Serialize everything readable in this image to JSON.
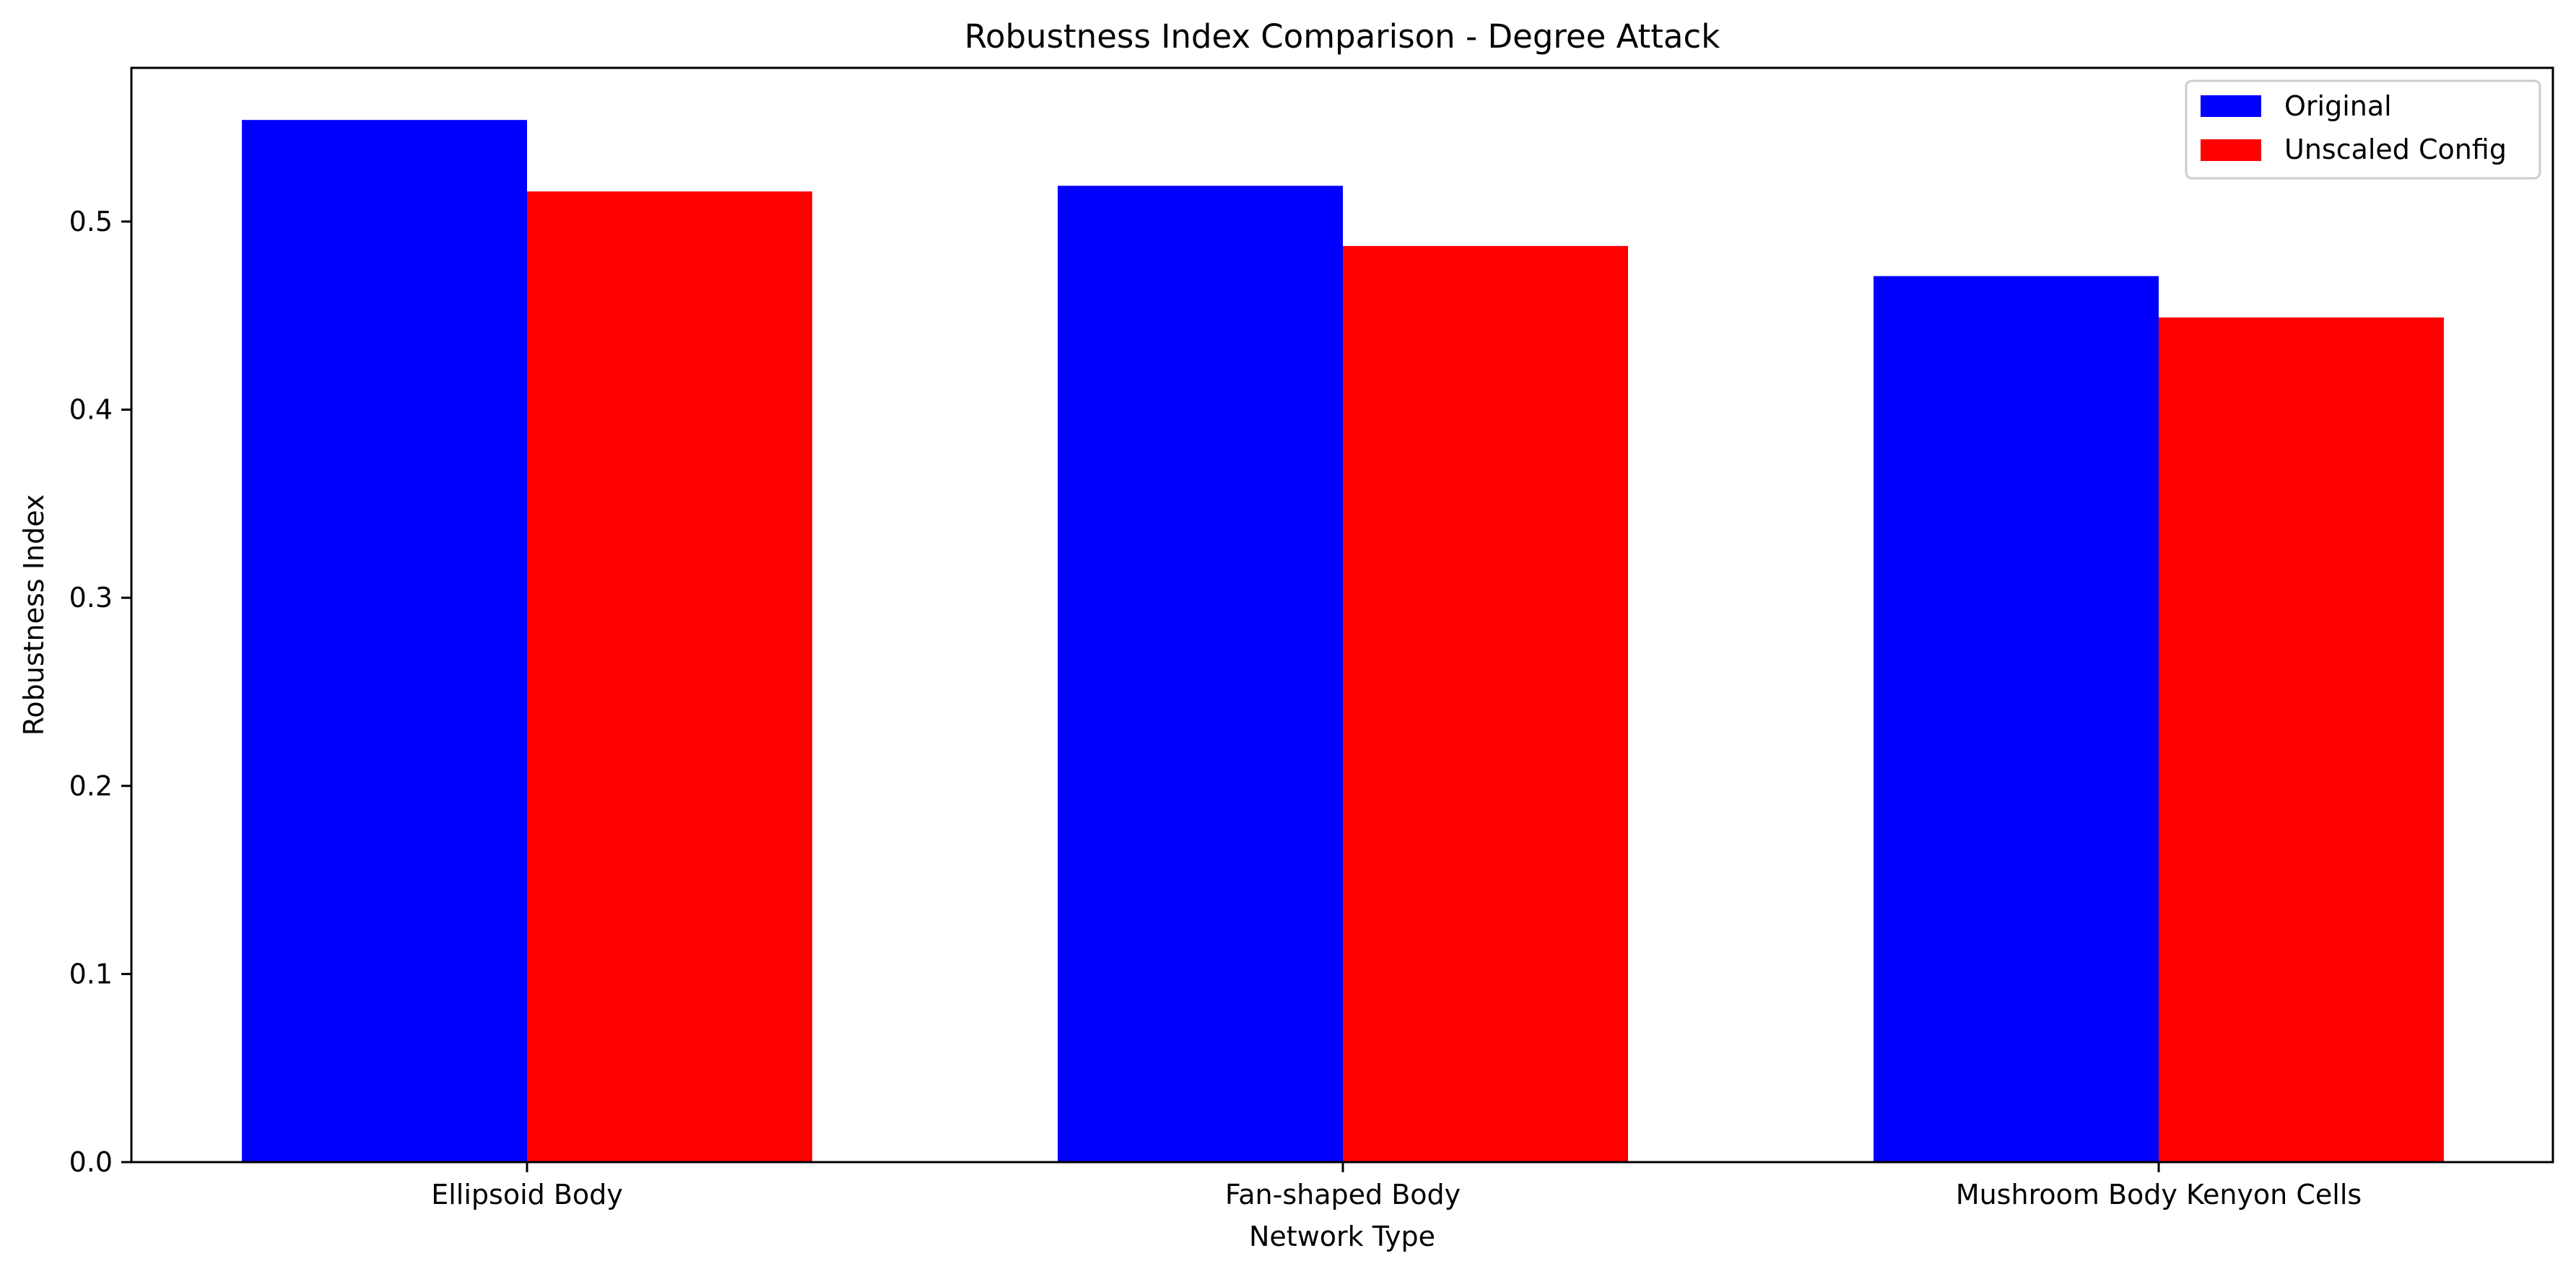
{
  "chart_data": {
    "type": "bar",
    "title": "Robustness Index Comparison - Degree Attack",
    "xlabel": "Network Type",
    "ylabel": "Robustness Index",
    "categories": [
      "Ellipsoid Body",
      "Fan-shaped Body",
      "Mushroom Body Kenyon Cells"
    ],
    "series": [
      {
        "name": "Original",
        "color": "#0000ff",
        "values": [
          0.554,
          0.519,
          0.471
        ]
      },
      {
        "name": "Unscaled Config",
        "color": "#ff0000",
        "values": [
          0.516,
          0.487,
          0.449
        ]
      }
    ],
    "ylim": [
      0,
      0.5817
    ],
    "yticks": [
      "0.0",
      "0.1",
      "0.2",
      "0.3",
      "0.4",
      "0.5"
    ],
    "legend": "top-right",
    "grid": false
  }
}
